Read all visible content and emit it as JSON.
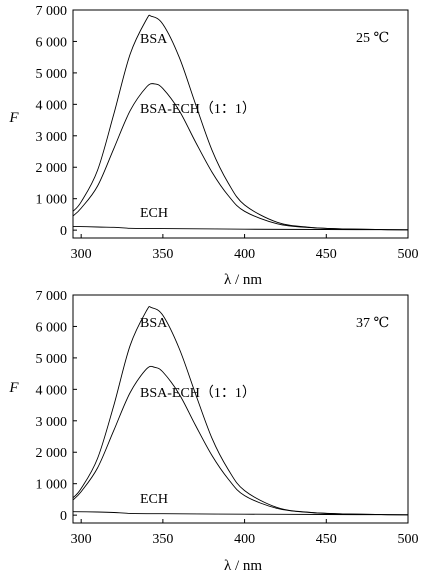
{
  "chart_data": [
    {
      "type": "line",
      "xlabel": "λ / nm",
      "ylabel": "F",
      "xlim": [
        295,
        500
      ],
      "ylim": [
        -250,
        7000
      ],
      "xticks": [
        "300",
        "350",
        "400",
        "450",
        "500"
      ],
      "yticks": [
        "0",
        "1 000",
        "2 000",
        "3 000",
        "4 000",
        "5 000",
        "6 000",
        "7 000"
      ],
      "annotation": "25 ℃",
      "series": [
        {
          "name": "BSA",
          "x": [
            295,
            300,
            310,
            320,
            330,
            340,
            343,
            350,
            360,
            370,
            380,
            390,
            400,
            420,
            440,
            460,
            480,
            500
          ],
          "values": [
            600,
            900,
            1900,
            3700,
            5600,
            6700,
            6800,
            6550,
            5500,
            4000,
            2550,
            1500,
            800,
            250,
            90,
            40,
            20,
            10
          ]
        },
        {
          "name": "BSA-ECH（1：1）",
          "x": [
            295,
            300,
            310,
            320,
            330,
            340,
            345,
            350,
            360,
            370,
            380,
            390,
            400,
            420,
            440,
            460,
            480,
            500
          ],
          "values": [
            450,
            700,
            1400,
            2600,
            3800,
            4550,
            4650,
            4500,
            3800,
            2800,
            1850,
            1100,
            600,
            200,
            80,
            40,
            20,
            10
          ]
        },
        {
          "name": "ECH",
          "x": [
            295,
            310,
            320,
            330,
            350,
            400,
            450,
            500
          ],
          "values": [
            120,
            100,
            90,
            60,
            50,
            30,
            20,
            10
          ]
        }
      ]
    },
    {
      "type": "line",
      "xlabel": "λ / nm",
      "ylabel": "F",
      "xlim": [
        295,
        500
      ],
      "ylim": [
        -250,
        7000
      ],
      "xticks": [
        "300",
        "350",
        "400",
        "450",
        "500"
      ],
      "yticks": [
        "0",
        "1 000",
        "2 000",
        "3 000",
        "4 000",
        "5 000",
        "6 000",
        "7 000"
      ],
      "annotation": "37 ℃",
      "series": [
        {
          "name": "BSA",
          "x": [
            295,
            300,
            310,
            320,
            330,
            340,
            343,
            350,
            360,
            370,
            380,
            390,
            400,
            420,
            440,
            460,
            480,
            500
          ],
          "values": [
            550,
            850,
            1800,
            3500,
            5400,
            6500,
            6600,
            6350,
            5300,
            3850,
            2450,
            1450,
            780,
            240,
            90,
            40,
            20,
            10
          ]
        },
        {
          "name": "BSA-ECH（1：1）",
          "x": [
            295,
            300,
            310,
            320,
            330,
            340,
            345,
            350,
            360,
            370,
            380,
            390,
            400,
            420,
            440,
            460,
            480,
            500
          ],
          "values": [
            480,
            750,
            1500,
            2700,
            3900,
            4650,
            4700,
            4550,
            3850,
            2850,
            1900,
            1150,
            620,
            210,
            85,
            40,
            20,
            10
          ]
        },
        {
          "name": "ECH",
          "x": [
            295,
            310,
            320,
            330,
            350,
            400,
            450,
            500
          ],
          "values": [
            110,
            100,
            85,
            55,
            45,
            30,
            20,
            10
          ]
        }
      ]
    }
  ]
}
